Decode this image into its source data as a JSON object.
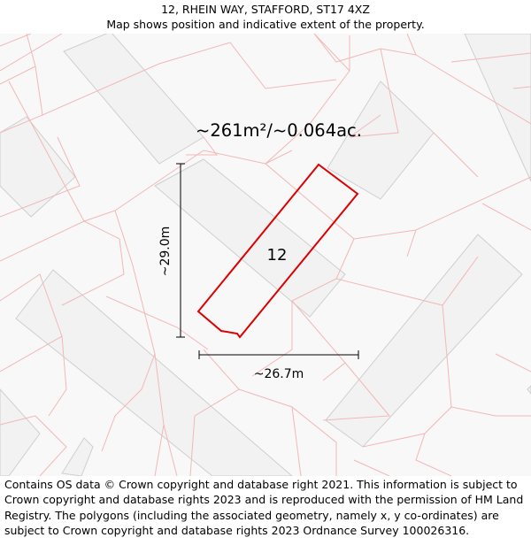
{
  "header": {
    "address": "12, RHEIN WAY, STAFFORD, ST17 4XZ",
    "subtitle": "Map shows position and indicative extent of the property."
  },
  "map": {
    "area_label": "~261m²/~0.064ac.",
    "plot_number": "12",
    "height_label": "~29.0m",
    "width_label": "~26.7m",
    "colors": {
      "background": "#f8f8f8",
      "building_fill": "#f2f2f2",
      "building_stroke": "#cfcfcf",
      "parcel_lines": "#f3b7b7",
      "property_outline": "#dd0000",
      "dimension_lines": "#000000"
    }
  },
  "footer": {
    "attribution": "Contains OS data © Crown copyright and database right 2021. This information is subject to Crown copyright and database rights 2023 and is reproduced with the permission of HM Land Registry. The polygons (including the associated geometry, namely x, y co-ordinates) are subject to Crown copyright and database rights 2023 Ordnance Survey 100026316."
  }
}
